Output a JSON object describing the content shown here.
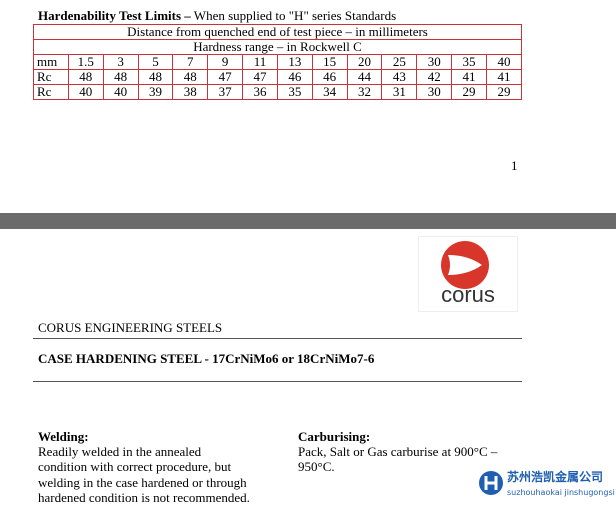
{
  "header": {
    "title_bold": "Hardenability Test Limits –",
    "title_rest": "When supplied to \"H\" series Standards"
  },
  "table": {
    "spans": [
      "Distance from quenched end of test piece – in millimeters",
      "Hardness range – in Rockwell C"
    ],
    "rows": [
      [
        "mm",
        "1.5",
        "3",
        "5",
        "7",
        "9",
        "11",
        "13",
        "15",
        "20",
        "25",
        "30",
        "35",
        "40"
      ],
      [
        "Rc",
        "48",
        "48",
        "48",
        "48",
        "47",
        "47",
        "46",
        "46",
        "44",
        "43",
        "42",
        "41",
        "41"
      ],
      [
        "Rc",
        "40",
        "40",
        "39",
        "38",
        "37",
        "36",
        "35",
        "34",
        "32",
        "31",
        "30",
        "29",
        "29"
      ]
    ]
  },
  "page_number": "1",
  "logo": {
    "text": "corus"
  },
  "company": "CORUS ENGINEERING STEELS",
  "heading": "CASE HARDENING STEEL - 17CrNiMo6 or 18CrNiMo7-6",
  "welding": {
    "title": "Welding:",
    "lines": [
      "Readily welded in the annealed",
      "condition with correct procedure, but",
      "welding in the case hardened or through",
      "hardened condition is not recommended."
    ]
  },
  "carburising": {
    "title": "Carburising:",
    "lines": [
      "Pack, Salt or Gas carburise at 900°C –",
      "950°C."
    ]
  },
  "watermark": {
    "name": "苏州浩凯金属公司",
    "pinyin": "suzhouhaokai jinshugongsi"
  }
}
